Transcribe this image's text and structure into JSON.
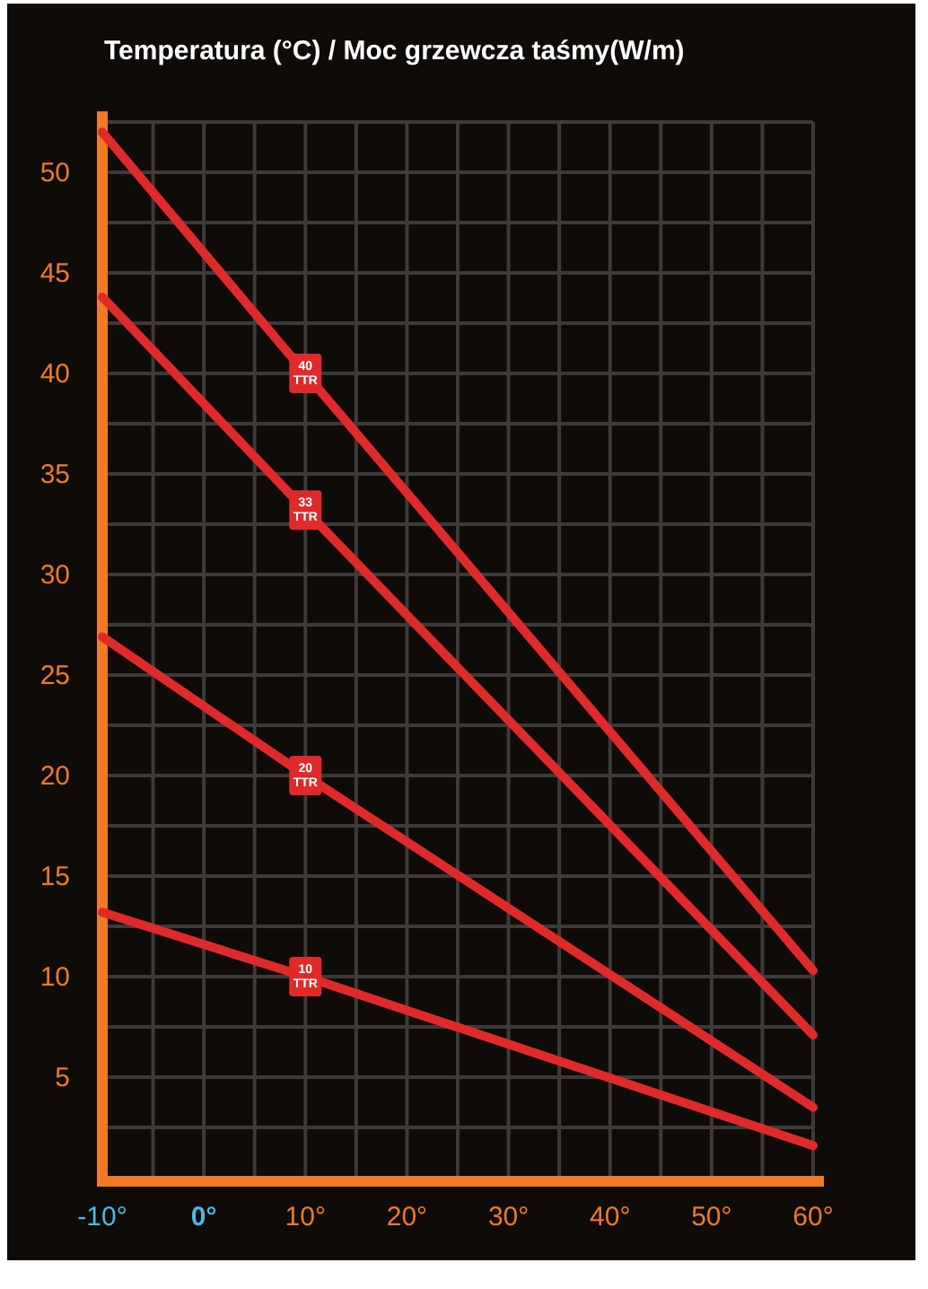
{
  "chart_data": {
    "type": "line",
    "title": "Temperatura (°C) / Moc grzewcza taśmy(W/m)",
    "xlim": [
      -10,
      60
    ],
    "ylim": [
      0,
      52.5
    ],
    "xticks": [
      {
        "value": -10,
        "label": "-10°"
      },
      {
        "value": -5,
        "label": null
      },
      {
        "value": 0,
        "label": "0°"
      },
      {
        "value": 5,
        "label": null
      },
      {
        "value": 10,
        "label": "10°"
      },
      {
        "value": 15,
        "label": null
      },
      {
        "value": 20,
        "label": "20°"
      },
      {
        "value": 25,
        "label": null
      },
      {
        "value": 30,
        "label": "30°"
      },
      {
        "value": 35,
        "label": null
      },
      {
        "value": 40,
        "label": "40°"
      },
      {
        "value": 45,
        "label": null
      },
      {
        "value": 50,
        "label": "50°"
      },
      {
        "value": 55,
        "label": null
      },
      {
        "value": 60,
        "label": "60°"
      }
    ],
    "yticks": [
      {
        "value": 2.5,
        "label": null
      },
      5,
      {
        "value": 7.5,
        "label": null
      },
      10,
      {
        "value": 12.5,
        "label": null
      },
      15,
      {
        "value": 17.5,
        "label": null
      },
      20,
      {
        "value": 22.5,
        "label": null
      },
      25,
      {
        "value": 27.5,
        "label": null
      },
      30,
      {
        "value": 32.5,
        "label": null
      },
      35,
      {
        "value": 37.5,
        "label": null
      },
      40,
      {
        "value": 42.5,
        "label": null
      },
      45,
      {
        "value": 47.5,
        "label": null
      },
      50,
      {
        "value": 52.5,
        "label": null
      }
    ],
    "grid": true,
    "marker": "none",
    "line_style": "solid",
    "x": [
      -10,
      10,
      60
    ],
    "series": [
      {
        "name": "40 TTR",
        "color": "#e02a2a",
        "values": [
          52,
          40,
          10.3
        ]
      },
      {
        "name": "33 TTR",
        "color": "#e02a2a",
        "values": [
          43.8,
          33.2,
          7.1
        ]
      },
      {
        "name": "20 TTR",
        "color": "#e02a2a",
        "values": [
          26.9,
          20,
          3.5
        ]
      },
      {
        "name": "10 TTR",
        "color": "#e02a2a",
        "values": [
          13.2,
          10,
          1.6
        ]
      }
    ]
  }
}
